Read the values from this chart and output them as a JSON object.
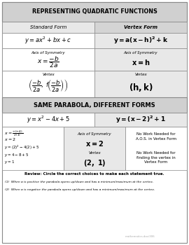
{
  "white": "#ffffff",
  "light_gray": "#e8e8e8",
  "med_gray": "#d4d4d4",
  "dark_gray": "#bbbbbb",
  "title_bg": "#d0d0d0",
  "right_col_bg": "#c8c8c8",
  "title1": "REPRESENTING QUADRATIC FUNCTIONS",
  "col1_header": "Standard Form",
  "col2_header": "Vertex Form",
  "title2": "SAME PARABOLA, DIFFERENT FORMS",
  "no_work1": "No Work Needed for\nA.O.S. in Vertex Form",
  "no_work2": "No Work Needed for\nfinding the vertex in\nVertex Form",
  "review": "Review: Circle the correct choices to make each statement true.",
  "r1": "(1)  When a is positive the parabola opens up/down and has a minimum/maximum at the vertex.",
  "r2": "(2)  When a is negative the parabola opens up/down and has a minimum/maximum at the vertex.",
  "watermark": "mathematics.doc/306"
}
